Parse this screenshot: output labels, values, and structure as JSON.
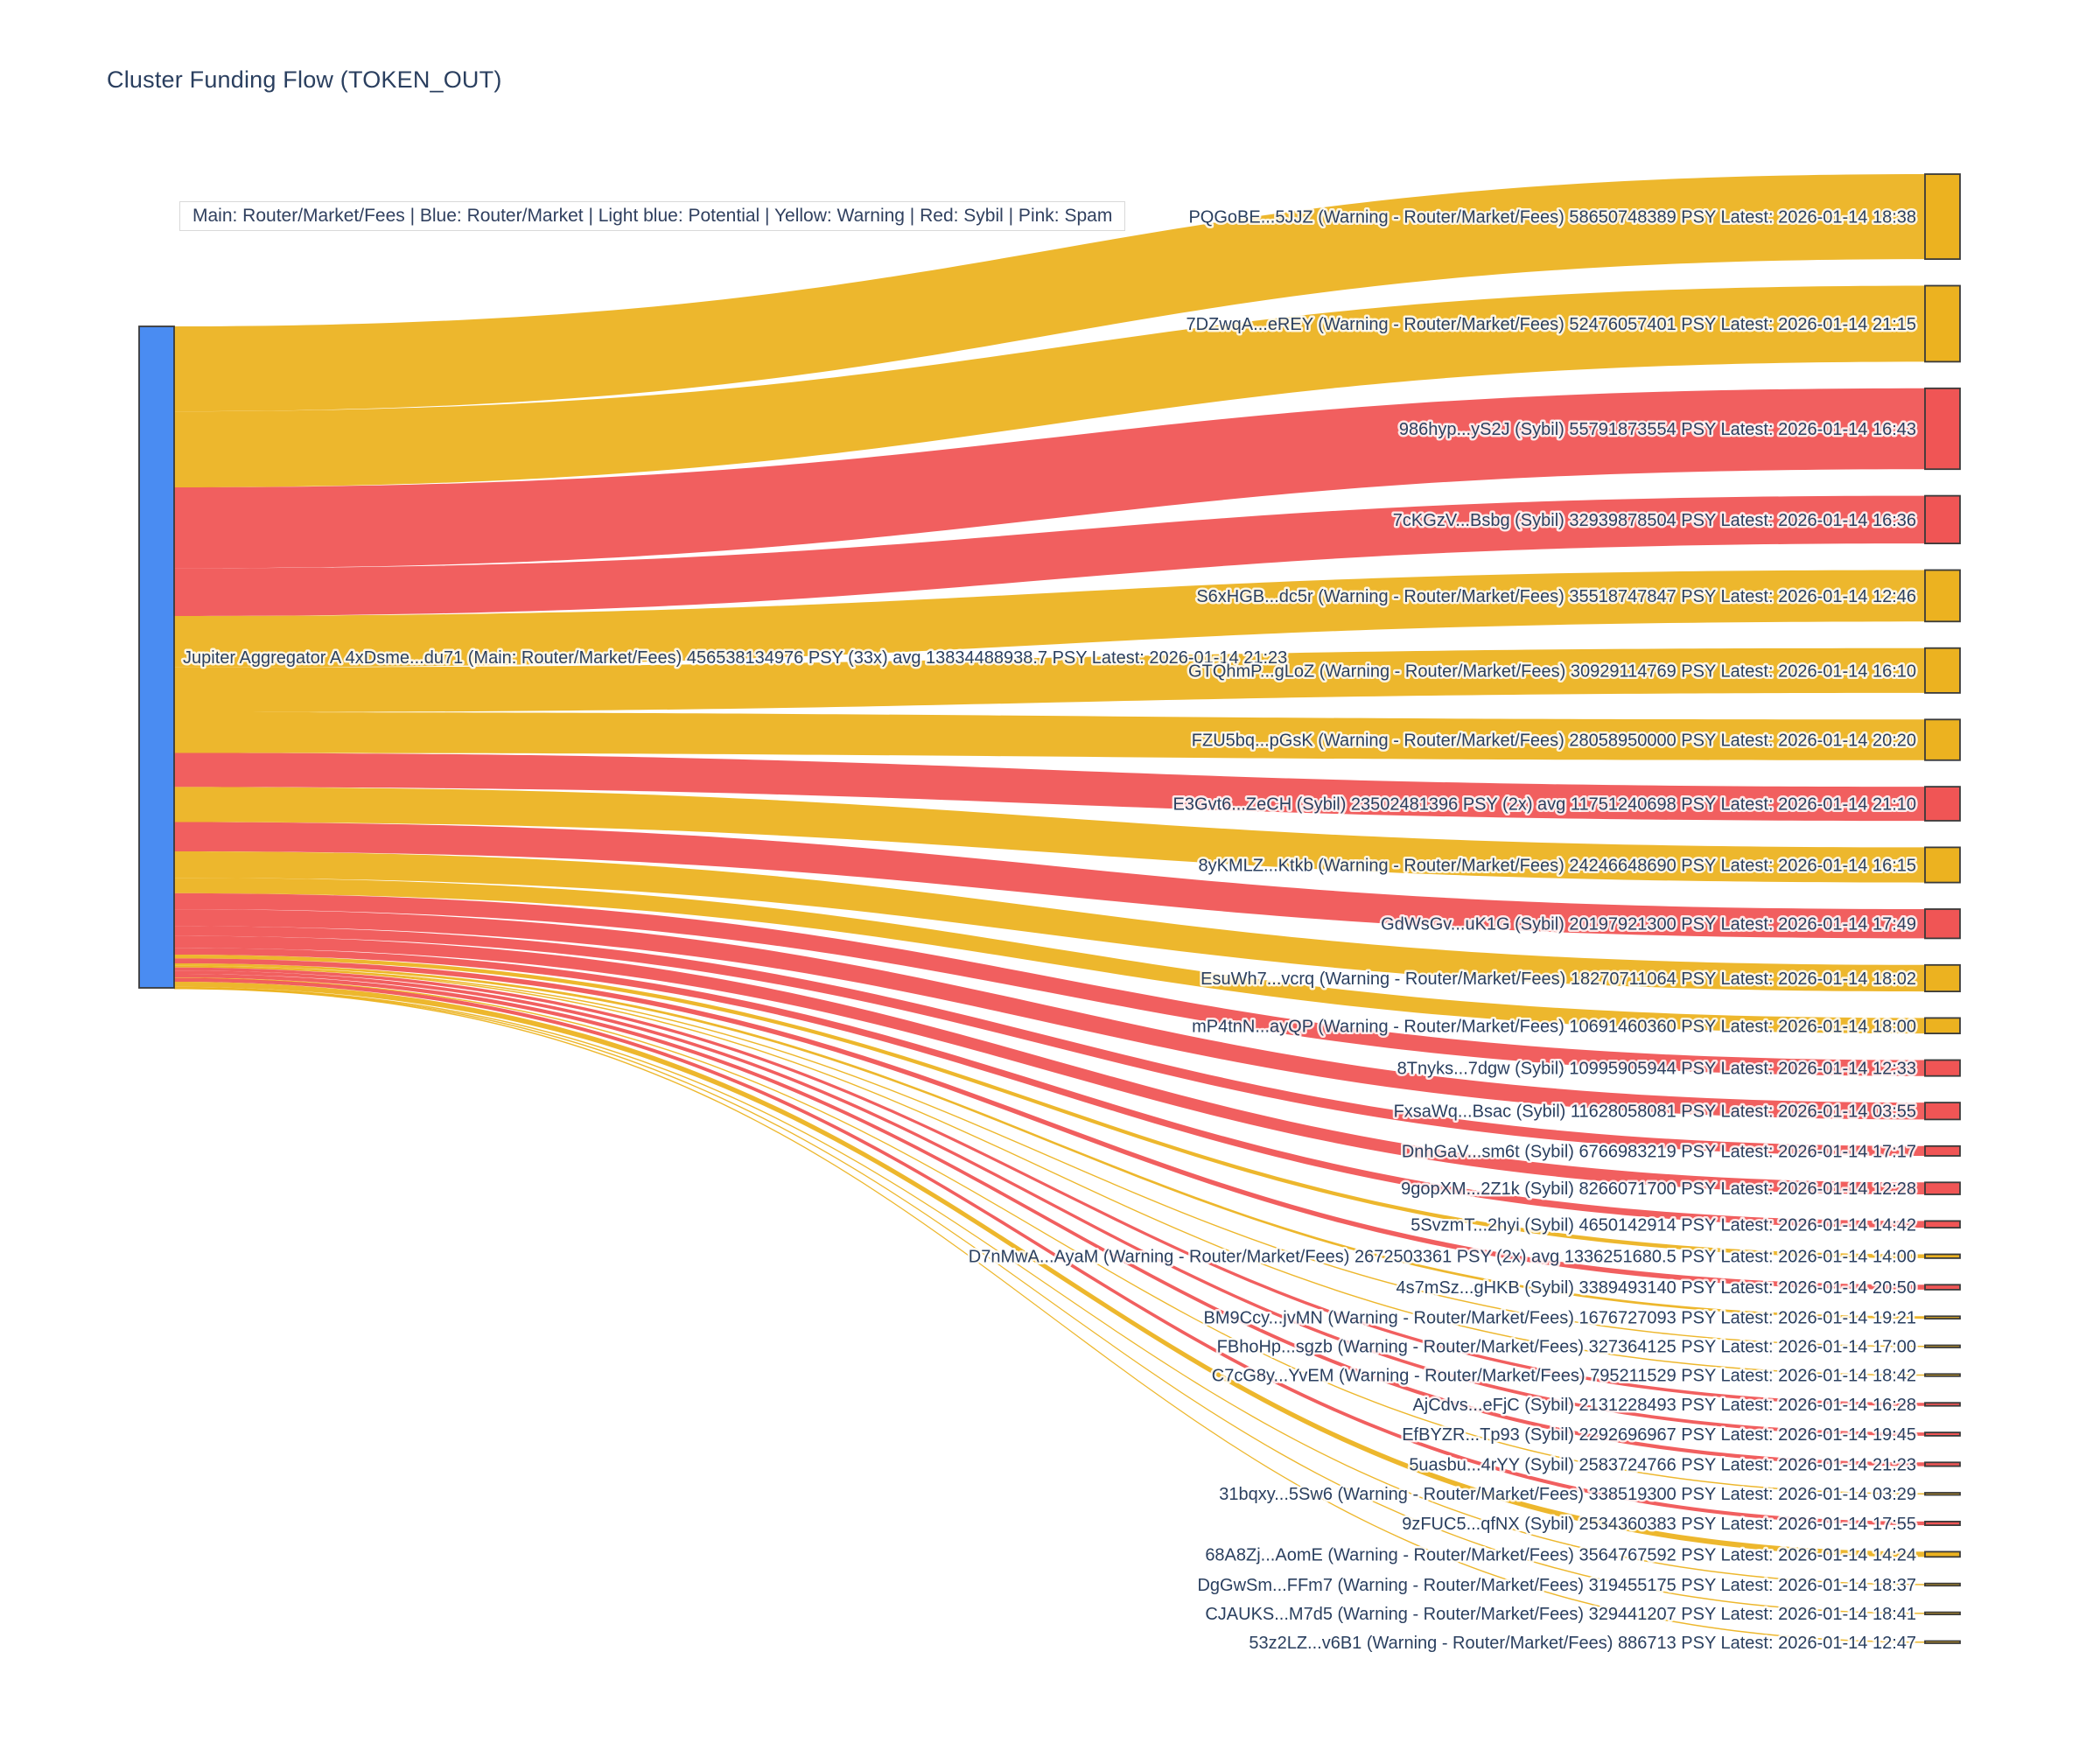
{
  "title": "Cluster Funding Flow (TOKEN_OUT)",
  "legend": "Main: Router/Market/Fees  |  Blue: Router/Market | Light blue: Potential | Yellow: Warning | Red: Sybil | Pink: Spam",
  "colors": {
    "main": "#4a8cf2",
    "warning": "#ecb220",
    "sybil": "#f05555",
    "node_border": "#3a3a3a",
    "label": "#2a3f5f"
  },
  "chart_data": {
    "type": "sankey",
    "unit": "PSY",
    "source_node": {
      "label": "Jupiter Aggregator A 4xDsme...du71 (Main: Router/Market/Fees) 456538134976 PSY (33x) avg 13834488938.7 PSY Latest: 2026-01-14 21:23",
      "value": 456538134976,
      "category": "main"
    },
    "flows": [
      {
        "label": "PQGoBE...5JJZ (Warning - Router/Market/Fees) 58650748389 PSY Latest: 2026-01-14 18:38",
        "value": 58650748389,
        "category": "warning"
      },
      {
        "label": "7DZwqA...eREY (Warning - Router/Market/Fees) 52476057401 PSY Latest: 2026-01-14 21:15",
        "value": 52476057401,
        "category": "warning"
      },
      {
        "label": "986hyp...yS2J (Sybil) 55791873554 PSY Latest: 2026-01-14 16:43",
        "value": 55791873554,
        "category": "sybil"
      },
      {
        "label": "7cKGzV...Bsbg (Sybil) 32939878504 PSY Latest: 2026-01-14 16:36",
        "value": 32939878504,
        "category": "sybil"
      },
      {
        "label": "S6xHGB...dc5r (Warning - Router/Market/Fees) 35518747847 PSY Latest: 2026-01-14 12:46",
        "value": 35518747847,
        "category": "warning"
      },
      {
        "label": "GTQhmP...gLoZ (Warning - Router/Market/Fees) 30929114769 PSY Latest: 2026-01-14 16:10",
        "value": 30929114769,
        "category": "warning"
      },
      {
        "label": "FZU5bq...pGsK (Warning - Router/Market/Fees) 28058950000 PSY Latest: 2026-01-14 20:20",
        "value": 28058950000,
        "category": "warning"
      },
      {
        "label": "E3Gvt6...ZeCH (Sybil) 23502481396 PSY (2x) avg 11751240698 PSY Latest: 2026-01-14 21:10",
        "value": 23502481396,
        "category": "sybil"
      },
      {
        "label": "8yKMLZ...Ktkb (Warning - Router/Market/Fees) 24246648690 PSY Latest: 2026-01-14 16:15",
        "value": 24246648690,
        "category": "warning"
      },
      {
        "label": "GdWsGv...uK1G (Sybil) 20197921300 PSY Latest: 2026-01-14 17:49",
        "value": 20197921300,
        "category": "sybil"
      },
      {
        "label": "EsuWh7...vcrq (Warning - Router/Market/Fees) 18270711064 PSY Latest: 2026-01-14 18:02",
        "value": 18270711064,
        "category": "warning"
      },
      {
        "label": "mP4tnN...ayQP (Warning - Router/Market/Fees) 10691460360 PSY Latest: 2026-01-14 18:00",
        "value": 10691460360,
        "category": "warning"
      },
      {
        "label": "8Tnyks...7dgw (Sybil) 10995905944 PSY Latest: 2026-01-14 12:33",
        "value": 10995905944,
        "category": "sybil"
      },
      {
        "label": "FxsaWq...Bsac (Sybil) 11628058081 PSY Latest: 2026-01-14 03:55",
        "value": 11628058081,
        "category": "sybil"
      },
      {
        "label": "DnhGaV...sm6t (Sybil) 6766983219 PSY Latest: 2026-01-14 17:17",
        "value": 6766983219,
        "category": "sybil"
      },
      {
        "label": "9gopXM...2Z1k (Sybil) 8266071700 PSY Latest: 2026-01-14 12:28",
        "value": 8266071700,
        "category": "sybil"
      },
      {
        "label": "5SvzmT...2hyi (Sybil) 4650142914 PSY Latest: 2026-01-14 14:42",
        "value": 4650142914,
        "category": "sybil"
      },
      {
        "label": "D7nMwA...AyaM (Warning - Router/Market/Fees) 2672503361 PSY (2x) avg 1336251680.5 PSY Latest: 2026-01-14 14:00",
        "value": 2672503361,
        "category": "warning"
      },
      {
        "label": "4s7mSz...gHKB (Sybil) 3389493140 PSY Latest: 2026-01-14 20:50",
        "value": 3389493140,
        "category": "sybil"
      },
      {
        "label": "BM9Ccy...jvMN (Warning - Router/Market/Fees) 1676727093 PSY Latest: 2026-01-14 19:21",
        "value": 1676727093,
        "category": "warning"
      },
      {
        "label": "FBhoHp...sgzb (Warning - Router/Market/Fees) 327364125 PSY Latest: 2026-01-14 17:00",
        "value": 327364125,
        "category": "warning"
      },
      {
        "label": "C7cG8y...YvEM (Warning - Router/Market/Fees) 795211529 PSY Latest: 2026-01-14 18:42",
        "value": 795211529,
        "category": "warning"
      },
      {
        "label": "AjCdvs...eFjC (Sybil) 2131228493 PSY Latest: 2026-01-14 16:28",
        "value": 2131228493,
        "category": "sybil"
      },
      {
        "label": "EfBYZR...Tp93 (Sybil) 2292696967 PSY Latest: 2026-01-14 19:45",
        "value": 2292696967,
        "category": "sybil"
      },
      {
        "label": "5uasbu...4rYY (Sybil) 2583724766 PSY Latest: 2026-01-14 21:23",
        "value": 2583724766,
        "category": "sybil"
      },
      {
        "label": "31bqxy...5Sw6 (Warning - Router/Market/Fees) 338519300 PSY Latest: 2026-01-14 03:29",
        "value": 338519300,
        "category": "warning"
      },
      {
        "label": "9zFUC5...qfNX (Sybil) 2534360383 PSY Latest: 2026-01-14 17:55",
        "value": 2534360383,
        "category": "sybil"
      },
      {
        "label": "68A8Zj...AomE (Warning - Router/Market/Fees) 3564767592 PSY Latest: 2026-01-14 14:24",
        "value": 3564767592,
        "category": "warning"
      },
      {
        "label": "DgGwSm...FFm7 (Warning - Router/Market/Fees) 319455175 PSY Latest: 2026-01-14 18:37",
        "value": 319455175,
        "category": "warning"
      },
      {
        "label": "CJAUKS...M7d5 (Warning - Router/Market/Fees) 329441207 PSY Latest: 2026-01-14 18:41",
        "value": 329441207,
        "category": "warning"
      },
      {
        "label": "53z2LZ...v6B1 (Warning - Router/Market/Fees) 886713 PSY Latest: 2026-01-14 12:47",
        "value": 886713,
        "category": "warning"
      }
    ]
  }
}
